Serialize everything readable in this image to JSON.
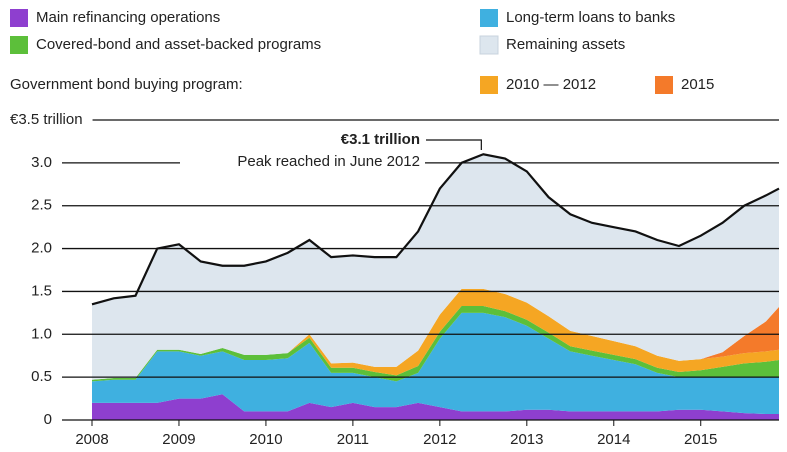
{
  "chart_data": {
    "type": "stacked_area",
    "legend_heading": "Government bond buying program:",
    "annotation_value": "€3.1 trillion",
    "annotation_text": "Peak reached in June 2012",
    "x": [
      2008,
      2008.25,
      2008.5,
      2008.75,
      2009,
      2009.25,
      2009.5,
      2009.75,
      2010,
      2010.25,
      2010.5,
      2010.75,
      2011,
      2011.25,
      2011.5,
      2011.75,
      2012,
      2012.25,
      2012.5,
      2012.75,
      2013,
      2013.25,
      2013.5,
      2013.75,
      2014,
      2014.25,
      2014.5,
      2014.75,
      2015,
      2015.25,
      2015.5,
      2015.75,
      2015.9
    ],
    "xlim": [
      2008,
      2015.9
    ],
    "xticks": [
      2008,
      2009,
      2010,
      2011,
      2012,
      2013,
      2014,
      2015
    ],
    "ylim": [
      0,
      3.5
    ],
    "yticks": [
      0,
      0.5,
      {
        "value": 1,
        "label": "1.0"
      },
      1.5,
      {
        "value": 2,
        "label": "2.0"
      },
      2.5,
      {
        "value": 3,
        "label": "3.0"
      },
      {
        "value": 3.5,
        "label": "€3.5 trillion"
      }
    ],
    "grid": true,
    "series": [
      {
        "name": "Main refinancing operations",
        "color": "#8e3fcf",
        "values": [
          0.2,
          0.2,
          0.2,
          0.2,
          0.25,
          0.25,
          0.3,
          0.1,
          0.1,
          0.1,
          0.2,
          0.15,
          0.2,
          0.15,
          0.15,
          0.2,
          0.15,
          0.1,
          0.1,
          0.1,
          0.12,
          0.12,
          0.1,
          0.1,
          0.1,
          0.1,
          0.1,
          0.12,
          0.12,
          0.1,
          0.08,
          0.07,
          0.07
        ]
      },
      {
        "name": "Long-term loans to banks",
        "color": "#3fb0e0",
        "values": [
          0.25,
          0.27,
          0.27,
          0.6,
          0.55,
          0.5,
          0.5,
          0.6,
          0.6,
          0.62,
          0.7,
          0.4,
          0.35,
          0.35,
          0.3,
          0.35,
          0.8,
          1.15,
          1.15,
          1.1,
          0.98,
          0.83,
          0.7,
          0.65,
          0.6,
          0.55,
          0.45,
          0.38,
          0.38,
          0.4,
          0.42,
          0.43,
          0.43
        ]
      },
      {
        "name": "Covered-bond and asset-backed programs",
        "color": "#5cbf3a",
        "values": [
          0.02,
          0.02,
          0.02,
          0.02,
          0.02,
          0.02,
          0.04,
          0.06,
          0.06,
          0.06,
          0.06,
          0.06,
          0.06,
          0.06,
          0.07,
          0.08,
          0.08,
          0.08,
          0.08,
          0.07,
          0.07,
          0.07,
          0.06,
          0.06,
          0.06,
          0.06,
          0.06,
          0.06,
          0.08,
          0.12,
          0.16,
          0.18,
          0.2
        ]
      },
      {
        "name": "2010 — 2012",
        "color": "#f5a623",
        "values": [
          0,
          0,
          0,
          0,
          0,
          0,
          0,
          0,
          0,
          0,
          0.04,
          0.05,
          0.06,
          0.06,
          0.1,
          0.18,
          0.2,
          0.2,
          0.2,
          0.2,
          0.2,
          0.19,
          0.18,
          0.17,
          0.16,
          0.15,
          0.14,
          0.13,
          0.13,
          0.12,
          0.12,
          0.12,
          0.12
        ]
      },
      {
        "name": "2015",
        "color": "#f47a2a",
        "values": [
          0,
          0,
          0,
          0,
          0,
          0,
          0,
          0,
          0,
          0,
          0,
          0,
          0,
          0,
          0,
          0,
          0,
          0,
          0,
          0,
          0,
          0,
          0,
          0,
          0,
          0,
          0,
          0,
          0,
          0.05,
          0.2,
          0.35,
          0.5
        ]
      },
      {
        "name": "Remaining assets",
        "color": "#dde6ee",
        "values": [
          0.88,
          0.93,
          0.96,
          1.18,
          1.23,
          1.08,
          0.96,
          1.04,
          1.09,
          1.17,
          1.1,
          1.24,
          1.25,
          1.28,
          1.28,
          1.39,
          1.47,
          1.47,
          1.57,
          1.58,
          1.53,
          1.39,
          1.36,
          1.32,
          1.33,
          1.34,
          1.35,
          1.34,
          1.44,
          1.51,
          1.52,
          1.47,
          1.38
        ]
      }
    ]
  }
}
